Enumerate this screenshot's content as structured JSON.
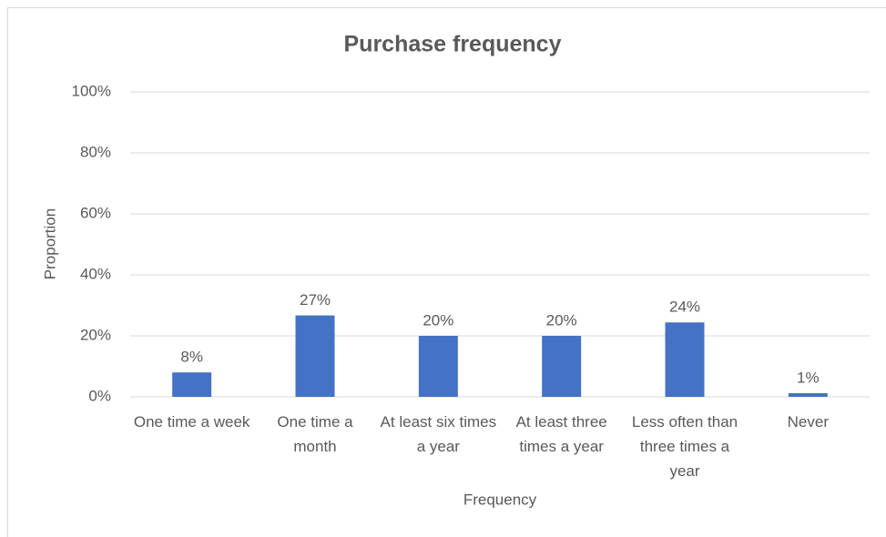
{
  "chart_data": {
    "type": "bar",
    "title": "Purchase frequency",
    "x_label": "Frequency",
    "y_label": "Proportion",
    "categories": [
      "One time a week",
      "One time a month",
      "At least six times a year",
      "At least three times a year",
      "Less often than three times a year",
      "Never"
    ],
    "values": [
      8,
      26.7,
      20,
      20,
      24.4,
      1.2
    ],
    "value_labels": [
      "8%",
      "27%",
      "20%",
      "20%",
      "24%",
      "1%"
    ],
    "color": "#4472c4",
    "ylim": [
      0,
      100
    ],
    "yticks": [
      {
        "value": 0,
        "label": "0%"
      },
      {
        "value": 20,
        "label": "20%"
      },
      {
        "value": 40,
        "label": "40%"
      },
      {
        "value": 60,
        "label": "60%"
      },
      {
        "value": 80,
        "label": "80%"
      },
      {
        "value": 100,
        "label": "100%"
      }
    ],
    "grid": true
  }
}
